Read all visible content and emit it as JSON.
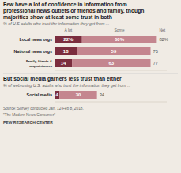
{
  "chart_data": [
    {
      "type": "bar",
      "orientation": "horizontal",
      "stacked": true,
      "data_labels": true,
      "tick_labels": "y",
      "title": [
        "Few have a lot of confidence in information from",
        "professional news outlets or friends and family, though",
        "majorities show at least some trust in both"
      ],
      "subtitle": "% of U.S adults who trust the information they get from ...",
      "categories": [
        "Local news orgs",
        "National news orgs",
        "Family, friends &\nacquaintances"
      ],
      "series": [
        {
          "name": "A lot",
          "color": "#7b2d3e",
          "values": [
            22,
            18,
            14
          ],
          "value_labels": [
            "22%",
            "18",
            "14"
          ]
        },
        {
          "name": "Some",
          "color": "#c4868f",
          "values": [
            60,
            59,
            63
          ],
          "value_labels": [
            "60%",
            "59",
            "63"
          ]
        }
      ],
      "totals": {
        "name": "Net",
        "values": [
          82,
          76,
          77
        ],
        "value_labels": [
          "82%",
          "76",
          "77"
        ]
      },
      "xlim": [
        0,
        90
      ]
    },
    {
      "type": "bar",
      "orientation": "horizontal",
      "stacked": true,
      "data_labels": true,
      "tick_labels": "y",
      "title": "But social media garners less trust than either",
      "subtitle": "% of web-using U.S. adults who trust the information they get from ...",
      "categories": [
        "Social media"
      ],
      "series": [
        {
          "color": "#7b2d3e",
          "values": [
            4
          ]
        },
        {
          "color": "#c4868f",
          "values": [
            30
          ]
        }
      ],
      "totals": {
        "values": [
          34
        ]
      },
      "xlim": [
        0,
        90
      ],
      "source": [
        "Source: Survey conducted Jan. 12-Feb 8, 2018.",
        "\"The Modern News Consumer\""
      ],
      "credit": "PEW RESEARCH CENTER"
    }
  ]
}
